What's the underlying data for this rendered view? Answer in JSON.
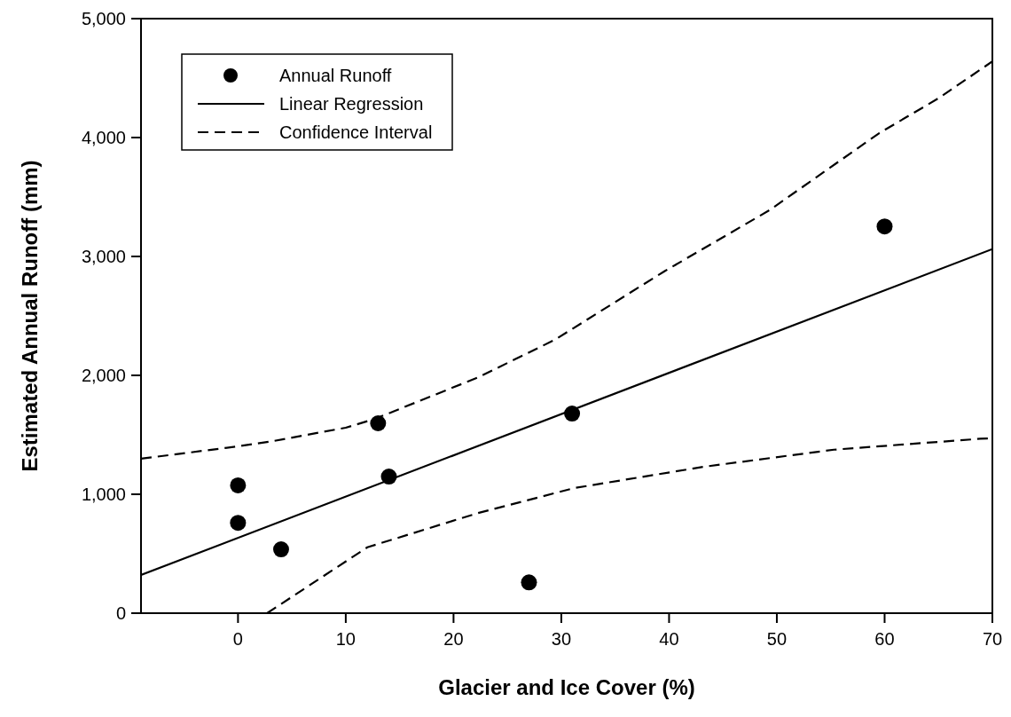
{
  "chart_data": {
    "type": "scatter",
    "xlabel": "Glacier and Ice Cover (%)",
    "ylabel": "Estimated Annual Runoff (mm)",
    "xlim": [
      -9,
      70
    ],
    "xticks": [
      0,
      10,
      20,
      30,
      40,
      50,
      60,
      70
    ],
    "ylim": [
      0,
      5000
    ],
    "yticks": [
      {
        "value": 0,
        "label": "0"
      },
      {
        "value": 1000,
        "label": "1,000"
      },
      {
        "value": 2000,
        "label": "2,000"
      },
      {
        "value": 3000,
        "label": "3,000"
      },
      {
        "value": 4000,
        "label": "4,000"
      },
      {
        "value": 5000,
        "label": "5,000"
      }
    ],
    "grid": false,
    "legend": "top left",
    "marker": "circle",
    "series": [
      {
        "name": "Annual Runoff",
        "color": "#000000",
        "x": [
          0,
          0,
          4,
          13,
          14,
          27,
          31,
          60
        ],
        "values": [
          1075,
          760,
          537,
          1597,
          1149,
          259,
          1679,
          3252
        ]
      },
      {
        "name": "Linear Regression",
        "type": "line",
        "marker": "none",
        "color": "#000000",
        "line_style": "solid",
        "x": [
          -9,
          70
        ],
        "values": [
          321,
          3062
        ]
      },
      {
        "name": "Confidence Interval",
        "type": "line",
        "marker": "none",
        "color": "#000000",
        "line_style": "dashed",
        "x": [
          -9,
          0,
          3.3,
          10,
          12.7,
          22.2,
          29.4,
          39.6,
          49.3,
          59.5,
          65,
          70
        ],
        "values": [
          1299,
          1403,
          1448,
          1560,
          1634,
          1980,
          2299,
          2877,
          3388,
          4037,
          4330,
          4640
        ]
      },
      {
        "type": "line",
        "marker": "none",
        "color": "#000000",
        "line_style": "dashed",
        "x": [
          2.7,
          12,
          22.2,
          31.2,
          43.2,
          55.3,
          68.9,
          70
        ],
        "values": [
          0,
          554,
          840,
          1052,
          1231,
          1375,
          1467,
          1470
        ]
      }
    ]
  }
}
